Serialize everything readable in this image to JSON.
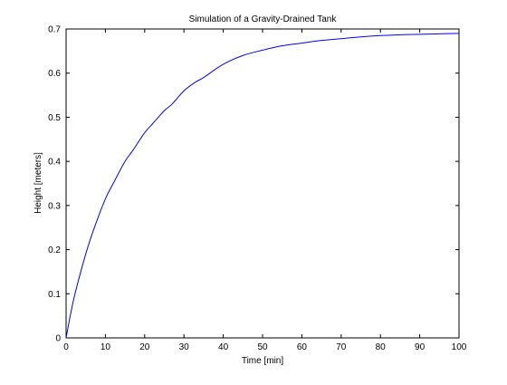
{
  "chart_data": {
    "type": "line",
    "title": "Simulation of a Gravity-Drained Tank",
    "xlabel": "Time [min]",
    "ylabel": "Height [meters]",
    "xlim": [
      0,
      100
    ],
    "ylim": [
      0,
      0.7
    ],
    "xticks": [
      0,
      10,
      20,
      30,
      40,
      50,
      60,
      70,
      80,
      90,
      100
    ],
    "xtick_labels": [
      "0",
      "10",
      "20",
      "30",
      "40",
      "50",
      "60",
      "70",
      "80",
      "90",
      "100"
    ],
    "yticks": [
      0,
      0.1,
      0.2,
      0.3,
      0.4,
      0.5,
      0.6,
      0.7
    ],
    "ytick_labels": [
      "0",
      "0.1",
      "0.2",
      "0.3",
      "0.4",
      "0.5",
      "0.6",
      "0.7"
    ],
    "grid": false,
    "legend": "none",
    "line_color": "#0000ff",
    "series": [
      {
        "x": [
          0,
          2,
          5,
          7,
          10,
          12,
          15,
          17,
          20,
          22,
          25,
          27,
          30,
          33,
          35,
          40,
          45,
          50,
          55,
          60,
          65,
          70,
          75,
          80,
          85,
          90,
          95,
          100
        ],
        "values": [
          0,
          0.09,
          0.19,
          0.245,
          0.315,
          0.35,
          0.4,
          0.425,
          0.465,
          0.485,
          0.515,
          0.53,
          0.56,
          0.58,
          0.59,
          0.62,
          0.64,
          0.652,
          0.662,
          0.668,
          0.674,
          0.678,
          0.682,
          0.685,
          0.687,
          0.688,
          0.689,
          0.69
        ]
      }
    ]
  }
}
